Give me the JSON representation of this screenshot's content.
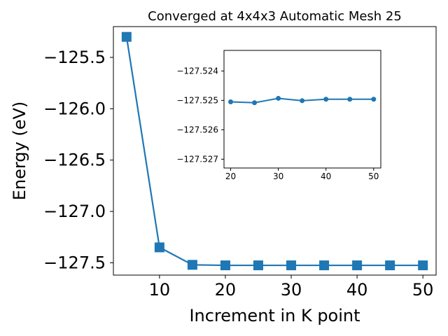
{
  "chart_data": [
    {
      "type": "line",
      "title": "Converged at 4x4x3 Automatic Mesh 25",
      "xlabel": "Increment in K point",
      "ylabel": "Energy (eV)",
      "xlim": [
        3,
        52
      ],
      "ylim": [
        -127.62,
        -125.2
      ],
      "xticks": [
        10,
        20,
        30,
        40,
        50
      ],
      "yticks": [
        -125.5,
        -126.0,
        -126.5,
        -127.0,
        -127.5
      ],
      "ytick_labels": [
        "−125.5",
        "−126.0",
        "−126.5",
        "−127.0",
        "−127.5"
      ],
      "marker": "square",
      "color": "#1f77b4",
      "grid": false,
      "series": [
        {
          "x": [
            5,
            10,
            15,
            20,
            25,
            30,
            35,
            40,
            45,
            50
          ],
          "y": [
            -125.3,
            -127.35,
            -127.52,
            -127.525,
            -127.525,
            -127.525,
            -127.525,
            -127.525,
            -127.525,
            -127.525
          ]
        }
      ]
    },
    {
      "type": "line",
      "title": "",
      "xlabel": "",
      "ylabel": "",
      "xlim": [
        18.6,
        51.5
      ],
      "ylim": [
        -127.5273,
        -127.5233
      ],
      "xticks": [
        20,
        30,
        40,
        50
      ],
      "yticks": [
        -127.527,
        -127.526,
        -127.525,
        -127.524
      ],
      "ytick_labels": [
        "−127.527",
        "−127.526",
        "−127.525",
        "−127.524"
      ],
      "marker": "circle",
      "color": "#1f77b4",
      "grid": false,
      "series": [
        {
          "x": [
            20,
            25,
            30,
            35,
            40,
            45,
            50
          ],
          "y": [
            -127.52505,
            -127.52508,
            -127.52493,
            -127.52501,
            -127.52496,
            -127.52496,
            -127.52496
          ]
        }
      ]
    }
  ]
}
